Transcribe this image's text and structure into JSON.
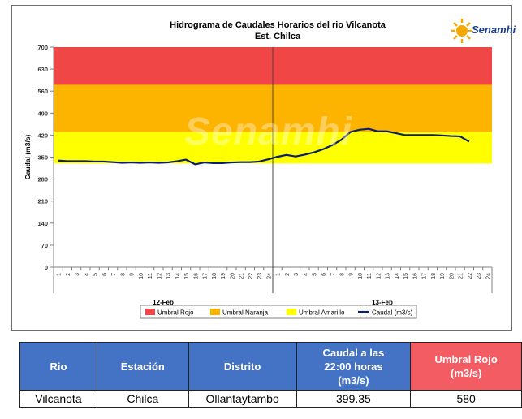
{
  "chart_data": {
    "type": "line",
    "title": "Hidrograma de Caudales Horarios del rio Vilcanota",
    "subtitle": "Est. Chilca",
    "ylabel": "Caudal  (m3/s)",
    "ylim": [
      0,
      700
    ],
    "yticks": [
      0,
      70,
      140,
      210,
      280,
      350,
      420,
      490,
      560,
      630,
      700
    ],
    "x_tick_labels": [
      "1",
      "2",
      "3",
      "4",
      "5",
      "6",
      "7",
      "8",
      "9",
      "10",
      "11",
      "12",
      "13",
      "14",
      "15",
      "16",
      "17",
      "18",
      "19",
      "20",
      "21",
      "22",
      "23",
      "24",
      "1",
      "2",
      "3",
      "4",
      "5",
      "6",
      "7",
      "8",
      "9",
      "10",
      "11",
      "12",
      "13",
      "14",
      "15",
      "16",
      "17",
      "18",
      "19",
      "20",
      "21",
      "22",
      "23",
      "24"
    ],
    "day_labels": [
      "12-Feb",
      "13-Feb"
    ],
    "thresholds": [
      {
        "name": "Umbral Rojo",
        "from": 580,
        "to": 700,
        "color": "#f04646"
      },
      {
        "name": "Umbral Naranja",
        "from": 430,
        "to": 580,
        "color": "#fdb400"
      },
      {
        "name": "Umbral Amarillo",
        "from": 330,
        "to": 430,
        "color": "#ffff00"
      }
    ],
    "series": [
      {
        "name": "Caudal (m3/s)",
        "color": "#0a1f6e",
        "values": [
          339,
          337,
          337,
          337,
          336,
          336,
          334,
          332,
          333,
          332,
          333,
          332,
          333,
          337,
          342,
          327,
          333,
          331,
          331,
          333,
          334,
          334,
          336,
          343,
          351,
          357,
          352,
          358,
          365,
          375,
          388,
          405,
          430,
          437,
          440,
          432,
          432,
          426,
          420,
          420,
          420,
          420,
          419,
          417,
          416,
          399.35
        ]
      }
    ],
    "legend": [
      "Umbral Rojo",
      "Umbral Naranja",
      "Umbral Amarillo",
      "Caudal (m3/s)"
    ],
    "legend_position": "bottom",
    "grid": false
  },
  "logo": {
    "text": "Senamhi"
  },
  "watermark": "Senamhi",
  "table": {
    "headers": [
      "Rio",
      "Estación",
      "Distrito",
      "Caudal a las 22:00 horas (m3/s)",
      "Umbral Rojo (m3/s)"
    ],
    "header_lines": {
      "caudal": [
        "Caudal a las",
        "22:00 horas"
      ],
      "caudal_unit": "(m3/s)",
      "umbral": "Umbral Rojo",
      "umbral_unit": "(m3/s)"
    },
    "row": [
      "Vilcanota",
      "Chilca",
      "Ollantaytambo",
      "399.35",
      "580"
    ]
  }
}
